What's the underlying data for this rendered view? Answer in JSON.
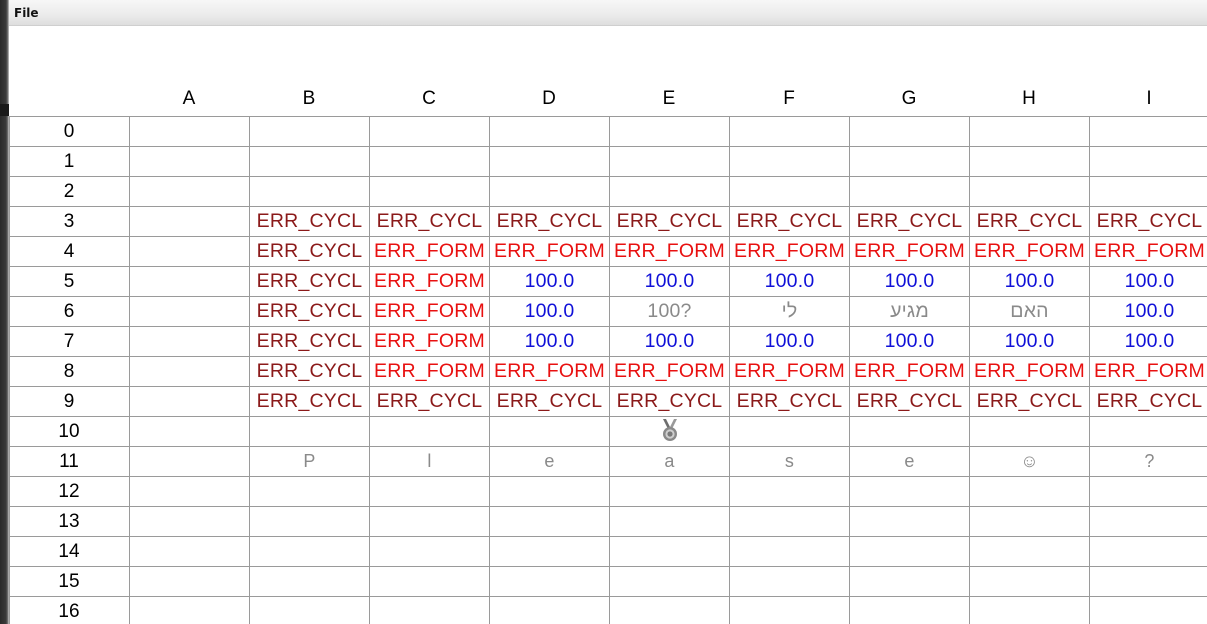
{
  "menu": {
    "file_label": "File"
  },
  "columns": [
    "A",
    "B",
    "C",
    "D",
    "E",
    "F",
    "G",
    "H",
    "I"
  ],
  "rows": [
    "0",
    "1",
    "2",
    "3",
    "4",
    "5",
    "6",
    "7",
    "8",
    "9",
    "10",
    "11",
    "12",
    "13",
    "14",
    "15",
    "16"
  ],
  "cells": [
    {
      "row": 3,
      "col": 1,
      "text": "ERR_CYCL",
      "kind": "cycl"
    },
    {
      "row": 3,
      "col": 2,
      "text": "ERR_CYCL",
      "kind": "cycl"
    },
    {
      "row": 3,
      "col": 3,
      "text": "ERR_CYCL",
      "kind": "cycl"
    },
    {
      "row": 3,
      "col": 4,
      "text": "ERR_CYCL",
      "kind": "cycl"
    },
    {
      "row": 3,
      "col": 5,
      "text": "ERR_CYCL",
      "kind": "cycl"
    },
    {
      "row": 3,
      "col": 6,
      "text": "ERR_CYCL",
      "kind": "cycl"
    },
    {
      "row": 3,
      "col": 7,
      "text": "ERR_CYCL",
      "kind": "cycl"
    },
    {
      "row": 3,
      "col": 8,
      "text": "ERR_CYCL",
      "kind": "cycl"
    },
    {
      "row": 4,
      "col": 1,
      "text": "ERR_CYCL",
      "kind": "cycl"
    },
    {
      "row": 4,
      "col": 2,
      "text": "ERR_FORM",
      "kind": "form"
    },
    {
      "row": 4,
      "col": 3,
      "text": "ERR_FORM",
      "kind": "form"
    },
    {
      "row": 4,
      "col": 4,
      "text": "ERR_FORM",
      "kind": "form"
    },
    {
      "row": 4,
      "col": 5,
      "text": "ERR_FORM",
      "kind": "form"
    },
    {
      "row": 4,
      "col": 6,
      "text": "ERR_FORM",
      "kind": "form"
    },
    {
      "row": 4,
      "col": 7,
      "text": "ERR_FORM",
      "kind": "form"
    },
    {
      "row": 4,
      "col": 8,
      "text": "ERR_FORM",
      "kind": "form"
    },
    {
      "row": 5,
      "col": 1,
      "text": "ERR_CYCL",
      "kind": "cycl"
    },
    {
      "row": 5,
      "col": 2,
      "text": "ERR_FORM",
      "kind": "form"
    },
    {
      "row": 5,
      "col": 3,
      "text": "100.0",
      "kind": "num"
    },
    {
      "row": 5,
      "col": 4,
      "text": "100.0",
      "kind": "num"
    },
    {
      "row": 5,
      "col": 5,
      "text": "100.0",
      "kind": "num"
    },
    {
      "row": 5,
      "col": 6,
      "text": "100.0",
      "kind": "num"
    },
    {
      "row": 5,
      "col": 7,
      "text": "100.0",
      "kind": "num"
    },
    {
      "row": 5,
      "col": 8,
      "text": "100.0",
      "kind": "num"
    },
    {
      "row": 6,
      "col": 1,
      "text": "ERR_CYCL",
      "kind": "cycl"
    },
    {
      "row": 6,
      "col": 2,
      "text": "ERR_FORM",
      "kind": "form"
    },
    {
      "row": 6,
      "col": 3,
      "text": "100.0",
      "kind": "num"
    },
    {
      "row": 6,
      "col": 4,
      "text": "100?",
      "kind": "gray"
    },
    {
      "row": 6,
      "col": 5,
      "text": "לי",
      "kind": "gray"
    },
    {
      "row": 6,
      "col": 6,
      "text": "מגיע",
      "kind": "gray"
    },
    {
      "row": 6,
      "col": 7,
      "text": "האם",
      "kind": "gray"
    },
    {
      "row": 6,
      "col": 8,
      "text": "100.0",
      "kind": "num"
    },
    {
      "row": 7,
      "col": 1,
      "text": "ERR_CYCL",
      "kind": "cycl"
    },
    {
      "row": 7,
      "col": 2,
      "text": "ERR_FORM",
      "kind": "form"
    },
    {
      "row": 7,
      "col": 3,
      "text": "100.0",
      "kind": "num"
    },
    {
      "row": 7,
      "col": 4,
      "text": "100.0",
      "kind": "num"
    },
    {
      "row": 7,
      "col": 5,
      "text": "100.0",
      "kind": "num"
    },
    {
      "row": 7,
      "col": 6,
      "text": "100.0",
      "kind": "num"
    },
    {
      "row": 7,
      "col": 7,
      "text": "100.0",
      "kind": "num"
    },
    {
      "row": 7,
      "col": 8,
      "text": "100.0",
      "kind": "num"
    },
    {
      "row": 8,
      "col": 1,
      "text": "ERR_CYCL",
      "kind": "cycl"
    },
    {
      "row": 8,
      "col": 2,
      "text": "ERR_FORM",
      "kind": "form"
    },
    {
      "row": 8,
      "col": 3,
      "text": "ERR_FORM",
      "kind": "form"
    },
    {
      "row": 8,
      "col": 4,
      "text": "ERR_FORM",
      "kind": "form"
    },
    {
      "row": 8,
      "col": 5,
      "text": "ERR_FORM",
      "kind": "form"
    },
    {
      "row": 8,
      "col": 6,
      "text": "ERR_FORM",
      "kind": "form"
    },
    {
      "row": 8,
      "col": 7,
      "text": "ERR_FORM",
      "kind": "form"
    },
    {
      "row": 8,
      "col": 8,
      "text": "ERR_FORM",
      "kind": "form"
    },
    {
      "row": 9,
      "col": 1,
      "text": "ERR_CYCL",
      "kind": "cycl"
    },
    {
      "row": 9,
      "col": 2,
      "text": "ERR_CYCL",
      "kind": "cycl"
    },
    {
      "row": 9,
      "col": 3,
      "text": "ERR_CYCL",
      "kind": "cycl"
    },
    {
      "row": 9,
      "col": 4,
      "text": "ERR_CYCL",
      "kind": "cycl"
    },
    {
      "row": 9,
      "col": 5,
      "text": "ERR_CYCL",
      "kind": "cycl"
    },
    {
      "row": 9,
      "col": 6,
      "text": "ERR_CYCL",
      "kind": "cycl"
    },
    {
      "row": 9,
      "col": 7,
      "text": "ERR_CYCL",
      "kind": "cycl"
    },
    {
      "row": 9,
      "col": 8,
      "text": "ERR_CYCL",
      "kind": "cycl"
    },
    {
      "row": 10,
      "col": 4,
      "text": "",
      "kind": "medal",
      "icon": "medal-icon"
    },
    {
      "row": 11,
      "col": 1,
      "text": "P",
      "kind": "plea"
    },
    {
      "row": 11,
      "col": 2,
      "text": "l",
      "kind": "plea"
    },
    {
      "row": 11,
      "col": 3,
      "text": "e",
      "kind": "plea"
    },
    {
      "row": 11,
      "col": 4,
      "text": "a",
      "kind": "plea"
    },
    {
      "row": 11,
      "col": 5,
      "text": "s",
      "kind": "plea"
    },
    {
      "row": 11,
      "col": 6,
      "text": "e",
      "kind": "plea"
    },
    {
      "row": 11,
      "col": 7,
      "text": "☺",
      "kind": "plea"
    },
    {
      "row": 11,
      "col": 8,
      "text": "?",
      "kind": "plea"
    }
  ],
  "colors": {
    "err_cycl": "#8b1a1a",
    "err_form": "#e81010",
    "number": "#1010d8",
    "muted": "#8a8a8a",
    "grid": "#9a9a9a"
  }
}
